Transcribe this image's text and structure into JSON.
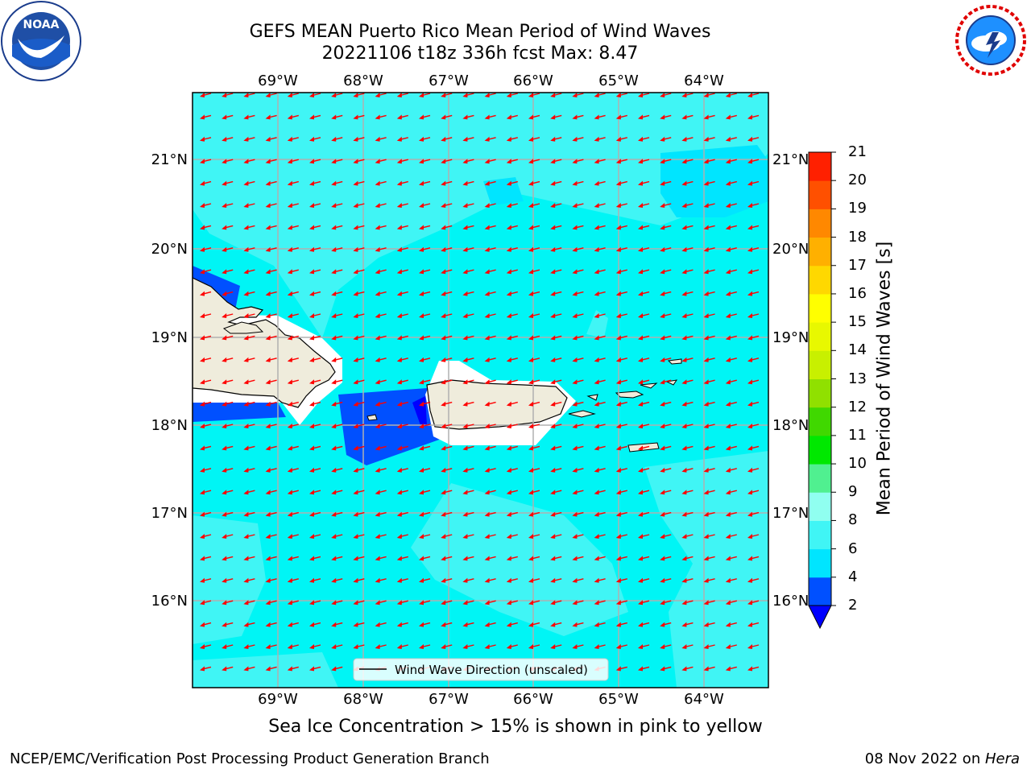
{
  "title": {
    "line1": "GEFS MEAN Puerto Rico Mean Period of Wind Waves",
    "line2": "20221106 t18z 336h fcst   Max: 8.47"
  },
  "map": {
    "lon_ticks": [
      "69°W",
      "68°W",
      "67°W",
      "66°W",
      "65°W",
      "64°W"
    ],
    "lat_ticks": [
      "21°N",
      "20°N",
      "19°N",
      "18°N",
      "17°N",
      "16°N"
    ],
    "legend": "Wind Wave Direction (unscaled)",
    "ocean_color": "#00f5f5",
    "land_color": "#efecdc",
    "arrow_color": "#ff0000"
  },
  "colorbar": {
    "label": "Mean Period of Wind Waves [s]",
    "levels": [
      "2",
      "4",
      "6",
      "8",
      "9",
      "10",
      "11",
      "12",
      "13",
      "14",
      "15",
      "16",
      "17",
      "18",
      "19",
      "20",
      "21"
    ],
    "colors": [
      "#0050ff",
      "#00e5ff",
      "#40f5f5",
      "#90fff0",
      "#50f090",
      "#00e800",
      "#40d800",
      "#90e000",
      "#c8f000",
      "#e8f800",
      "#ffff00",
      "#ffd800",
      "#ffb000",
      "#ff8800",
      "#ff5000",
      "#ff2000",
      "#ff0000"
    ],
    "under_color": "#0000ff"
  },
  "subnote": "Sea Ice Concentration > 15% is shown in pink to yellow",
  "footer": {
    "left": "NCEP/EMC/Verification Post Processing Product Generation Branch",
    "right_prefix": "08 Nov 2022 on ",
    "right_host": "Hera"
  },
  "logos": {
    "left": "noaa-logo",
    "right": "nws-logo"
  }
}
